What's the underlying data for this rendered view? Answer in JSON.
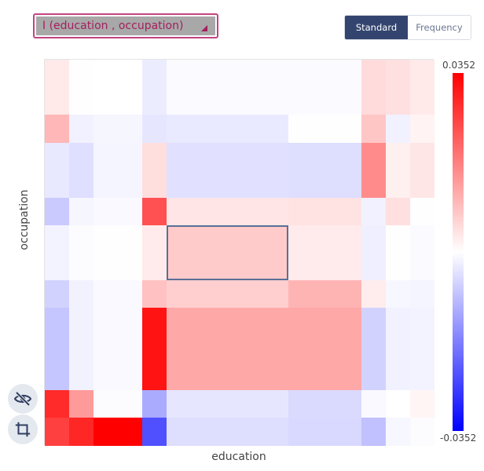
{
  "dropdown": {
    "label": "I (education , occupation)"
  },
  "toggle": {
    "options": [
      "Standard",
      "Frequency"
    ],
    "selected": "Standard"
  },
  "axes": {
    "xlabel": "education",
    "ylabel": "occupation"
  },
  "colorbar": {
    "max_label": "0.0352",
    "min_label": "-0.0352",
    "max": 0.0352,
    "min": -0.0352,
    "colors": [
      "#ff0000",
      "#ffffff",
      "#0000ff"
    ]
  },
  "side_buttons": {
    "hide_icon": "eye-off-icon",
    "crop_icon": "crop-icon"
  },
  "chart_data": {
    "type": "heatmap",
    "xlabel": "education",
    "ylabel": "occupation",
    "value_range": [
      -0.0352,
      0.0352
    ],
    "column_widths": [
      31,
      31,
      62,
      31,
      155,
      93,
      31,
      31,
      31
    ],
    "row_heights": [
      70,
      36,
      70,
      35,
      70,
      35,
      105,
      35,
      36
    ],
    "values": [
      [
        0.003,
        0.0001,
        0.0,
        -0.0026,
        -0.0006,
        -0.0006,
        0.005,
        0.0043,
        0.003
      ],
      [
        0.01,
        -0.002,
        -0.0012,
        -0.0035,
        -0.003,
        -0.0002,
        0.0078,
        -0.0019,
        0.0016
      ],
      [
        -0.0032,
        -0.0044,
        -0.0014,
        0.0045,
        -0.0041,
        -0.0046,
        0.016,
        0.0021,
        0.0035
      ],
      [
        -0.0073,
        -0.0012,
        -0.0008,
        0.024,
        0.0036,
        0.0038,
        -0.0019,
        0.0044,
        -0.0002
      ],
      [
        -0.0017,
        -0.0004,
        -0.0002,
        0.0028,
        0.0073,
        0.0027,
        -0.0022,
        0.0002,
        -0.0006
      ],
      [
        -0.0062,
        -0.0018,
        -0.0008,
        0.0085,
        0.0066,
        0.0104,
        0.0025,
        -0.0011,
        -0.0014
      ],
      [
        -0.008,
        -0.0018,
        -0.0008,
        0.0326,
        0.012,
        0.012,
        -0.0062,
        -0.0019,
        -0.0016
      ],
      [
        0.0294,
        0.014,
        -0.0004,
        -0.0118,
        -0.0035,
        -0.0051,
        -0.0008,
        0.0,
        0.0014
      ],
      [
        0.0264,
        0.03,
        0.0352,
        -0.0242,
        -0.0045,
        -0.0052,
        -0.0085,
        -0.0011,
        -0.0004
      ]
    ],
    "selected_cell": {
      "row": 4,
      "col": 4
    }
  }
}
